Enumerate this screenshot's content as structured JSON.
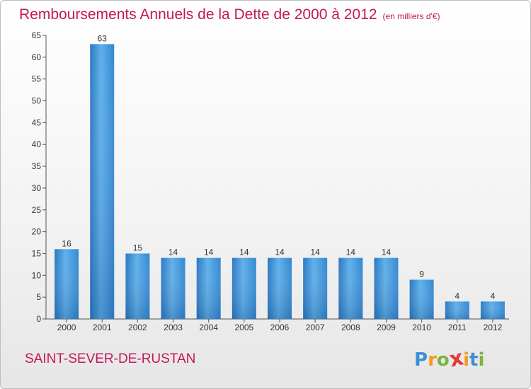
{
  "title": "Remboursements Annuels de la Dette de 2000 à 2012",
  "subtitle": "(en milliers d'€)",
  "town": "SAINT-SEVER-DE-RUSTAN",
  "logo": {
    "text": "Proxiti",
    "letter_colors": [
      "#3a8fd8",
      "#f29b1d",
      "#7cb342",
      "#e53935",
      "#f29b1d",
      "#3a8fd8",
      "#7cb342"
    ]
  },
  "colors": {
    "bar": "#3d8fd6",
    "title": "#c2185b",
    "axis": "#333333"
  },
  "chart_data": {
    "type": "bar",
    "title": "Remboursements Annuels de la Dette de 2000 à 2012",
    "subtitle": "(en milliers d'€)",
    "categories": [
      "2000",
      "2001",
      "2002",
      "2003",
      "2004",
      "2005",
      "2006",
      "2007",
      "2008",
      "2009",
      "2010",
      "2011",
      "2012"
    ],
    "values": [
      16,
      63,
      15,
      14,
      14,
      14,
      14,
      14,
      14,
      14,
      9,
      4,
      4
    ],
    "ylim": [
      0,
      65
    ],
    "yticks": [
      0,
      5,
      10,
      15,
      20,
      25,
      30,
      35,
      40,
      45,
      50,
      55,
      60,
      65
    ],
    "xlabel": "",
    "ylabel": "",
    "grid": false,
    "data_labels": true
  }
}
